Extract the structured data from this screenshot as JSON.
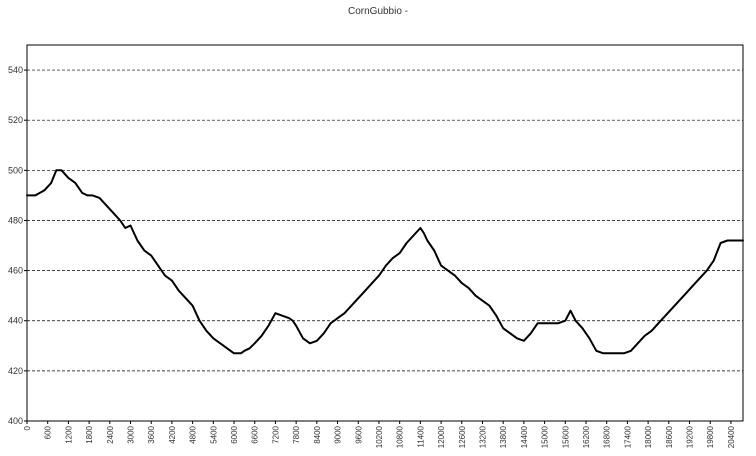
{
  "chart_data": {
    "type": "line",
    "title": "CornGubbio -",
    "xlabel": "",
    "ylabel": "",
    "xlim": [
      0,
      20750
    ],
    "ylim": [
      400,
      550
    ],
    "grid": "horizontal-dashed",
    "legend": "none",
    "line_color": "#000000",
    "y_ticks": [
      400,
      420,
      440,
      460,
      480,
      500,
      520,
      540
    ],
    "x_ticks": [
      0,
      600,
      1200,
      1800,
      2400,
      3000,
      3600,
      4200,
      4800,
      5400,
      6000,
      6600,
      7200,
      7800,
      8400,
      9000,
      9600,
      10200,
      10800,
      11400,
      12000,
      12600,
      13200,
      13800,
      14400,
      15000,
      15600,
      16200,
      16800,
      17400,
      18000,
      18600,
      19200,
      19800,
      20400
    ],
    "series": [
      {
        "x": [
          0,
          240,
          500,
          700,
          850,
          1000,
          1200,
          1400,
          1600,
          1750,
          1900,
          2100,
          2300,
          2500,
          2700,
          2850,
          3000,
          3200,
          3400,
          3600,
          3800,
          4000,
          4200,
          4400,
          4600,
          4800,
          5000,
          5200,
          5400,
          5600,
          5800,
          6000,
          6200,
          6300,
          6450,
          6600,
          6800,
          7000,
          7200,
          7400,
          7600,
          7700,
          7800,
          8000,
          8200,
          8400,
          8600,
          8800,
          9000,
          9200,
          9400,
          9600,
          9800,
          10000,
          10200,
          10400,
          10600,
          10800,
          11000,
          11200,
          11400,
          11500,
          11600,
          11800,
          12000,
          12200,
          12400,
          12600,
          12800,
          13000,
          13200,
          13400,
          13600,
          13800,
          14000,
          14200,
          14400,
          14600,
          14800,
          15000,
          15200,
          15400,
          15600,
          15750,
          15900,
          16100,
          16300,
          16500,
          16700,
          16900,
          17100,
          17300,
          17500,
          17700,
          17900,
          18100,
          18300,
          18500,
          18700,
          18900,
          19100,
          19300,
          19500,
          19700,
          19900,
          20100,
          20300,
          20500,
          20750
        ],
        "y": [
          490,
          490,
          492,
          495,
          500,
          500,
          497,
          495,
          491,
          490,
          490,
          489,
          486,
          483,
          480,
          477,
          478,
          472,
          468,
          466,
          462,
          458,
          456,
          452,
          449,
          446,
          440,
          436,
          433,
          431,
          429,
          427,
          427,
          428,
          429,
          431,
          434,
          438,
          443,
          442,
          441,
          440,
          438,
          433,
          431,
          432,
          435,
          439,
          441,
          443,
          446,
          449,
          452,
          455,
          458,
          462,
          465,
          467,
          471,
          474,
          477,
          475,
          472,
          468,
          462,
          460,
          458,
          455,
          453,
          450,
          448,
          446,
          442,
          437,
          435,
          433,
          432,
          435,
          439,
          439,
          439,
          439,
          440,
          444,
          440,
          437,
          433,
          428,
          427,
          427,
          427,
          427,
          428,
          431,
          434,
          436,
          439,
          442,
          445,
          448,
          451,
          454,
          457,
          460,
          464,
          471,
          472,
          472,
          472
        ]
      }
    ]
  }
}
